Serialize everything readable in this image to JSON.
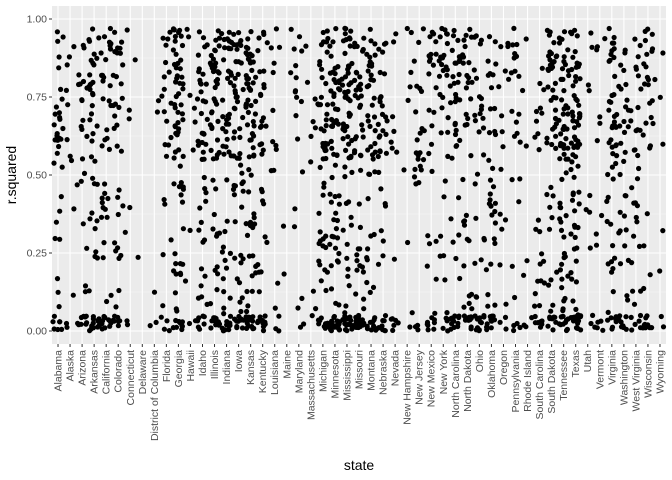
{
  "chart_data": {
    "type": "scatter",
    "xlabel": "state",
    "ylabel": "r.squared",
    "ylim": [
      0,
      1
    ],
    "yticks": [
      0.0,
      0.25,
      0.5,
      0.75,
      1.0
    ],
    "ytick_labels": [
      "0.00",
      "0.25",
      "0.50",
      "0.75",
      "1.00"
    ],
    "grid": true,
    "colors": {
      "panel": "#ebebeb",
      "grid_major": "#ffffff",
      "point": "#000000"
    },
    "categories": [
      "Alabama",
      "Alaska",
      "Arizona",
      "Arkansas",
      "California",
      "Colorado",
      "Connecticut",
      "Delaware",
      "District of Columbia",
      "Florida",
      "Georgia",
      "Hawaii",
      "Idaho",
      "Illinois",
      "Indiana",
      "Iowa",
      "Kansas",
      "Kentucky",
      "Louisiana",
      "Maine",
      "Maryland",
      "Massachusetts",
      "Michigan",
      "Minnesota",
      "Mississippi",
      "Missouri",
      "Montana",
      "Nebraska",
      "Nevada",
      "New Hampshire",
      "New Jersey",
      "New Mexico",
      "New York",
      "North Carolina",
      "North Dakota",
      "Ohio",
      "Oklahoma",
      "Oregon",
      "Pennsylvania",
      "Rhode Island",
      "South Carolina",
      "South Dakota",
      "Tennessee",
      "Texas",
      "Utah",
      "Vermont",
      "Virginia",
      "Washington",
      "West Virginia",
      "Wisconsin",
      "Wyoming"
    ],
    "point_counts": [
      40,
      12,
      30,
      48,
      45,
      38,
      8,
      1,
      5,
      25,
      70,
      10,
      50,
      60,
      55,
      62,
      75,
      42,
      16,
      4,
      18,
      10,
      60,
      75,
      70,
      65,
      50,
      40,
      14,
      9,
      25,
      32,
      35,
      45,
      45,
      38,
      42,
      18,
      24,
      8,
      30,
      52,
      70,
      80,
      10,
      14,
      55,
      38,
      36,
      34,
      8
    ]
  }
}
